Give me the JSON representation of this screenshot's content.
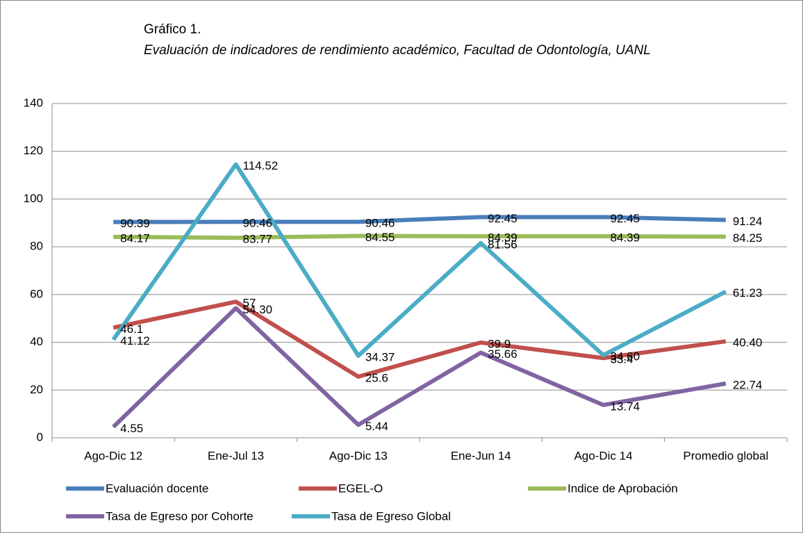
{
  "chart_data": {
    "type": "line",
    "title": "Gráfico 1.",
    "subtitle": "Evaluación de indicadores de rendimiento académico, Facultad de Odontología, UANL",
    "categories": [
      "Ago-Dic 12",
      "Ene-Jul 13",
      "Ago-Dic 13",
      "Ene-Jun 14",
      "Ago-Dic 14",
      "Promedio global"
    ],
    "ylim": [
      0,
      140
    ],
    "yticks": [
      0,
      20,
      40,
      60,
      80,
      100,
      120,
      140
    ],
    "grid": true,
    "legend": "bottom",
    "series": [
      {
        "name": "Evaluación docente",
        "color": "#4a7ebb",
        "values": [
          90.39,
          90.46,
          90.46,
          92.45,
          92.45,
          91.24
        ]
      },
      {
        "name": "EGEL-O",
        "color": "#c0504d",
        "values": [
          46.1,
          57,
          25.6,
          39.9,
          33.4,
          40.4
        ],
        "value_labels": [
          "46.1",
          "57",
          "25.6",
          "39.9",
          "33.4",
          "40.40"
        ]
      },
      {
        "name": "Indice de Aprobación",
        "color": "#9bbb59",
        "values": [
          84.17,
          83.77,
          84.55,
          84.39,
          84.39,
          84.25
        ]
      },
      {
        "name": "Tasa de Egreso por Cohorte",
        "color": "#8064a2",
        "values": [
          4.55,
          54.3,
          5.44,
          35.66,
          13.74,
          22.74
        ],
        "value_labels": [
          "4.55",
          "54.30",
          "5.44",
          "35.66",
          "13.74",
          "22.74"
        ]
      },
      {
        "name": "Tasa de Egreso Global",
        "color": "#4bacc6",
        "values": [
          41.12,
          114.52,
          34.37,
          81.56,
          34.6,
          61.23
        ],
        "value_labels": [
          "41.12",
          "114.52",
          "34.37",
          "81.56",
          "34.60",
          "61.23"
        ]
      }
    ]
  }
}
